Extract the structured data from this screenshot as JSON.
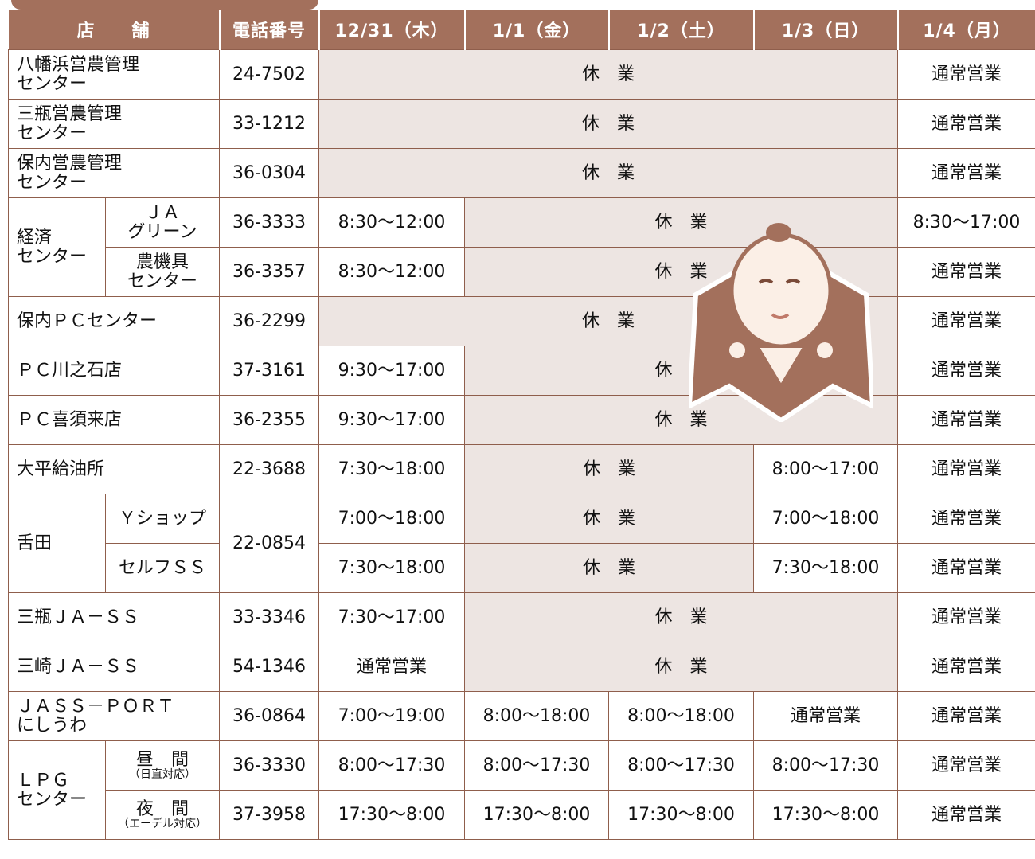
{
  "header": [
    "店　　舗",
    "電話番号",
    "12/31（木）",
    "1/1（金）",
    "1/2（土）",
    "1/3（日）",
    "1/4（月）"
  ],
  "rows": [
    {
      "store": [
        "八幡浜営農管理",
        "センター"
      ],
      "phone": "24-7502",
      "hours": [
        "休　業",
        "通常営業"
      ]
    },
    {
      "store": [
        "三瓶営農管理",
        "センター"
      ],
      "phone": "33-1212",
      "hours": [
        "休　業",
        "通常営業"
      ]
    },
    {
      "store": [
        "保内営農管理",
        "センター"
      ],
      "phone": "36-0304",
      "hours": [
        "休　業",
        "通常営業"
      ]
    },
    {
      "group": [
        "経済",
        "センター"
      ],
      "sub": [
        "ＪＡ",
        "グリーン"
      ],
      "phone": "36-3333",
      "hours": [
        "8:30～12:00",
        "休　業",
        "8:30～17:00"
      ]
    },
    {
      "sub": [
        "農機具",
        "センター"
      ],
      "phone": "36-3357",
      "hours": [
        "8:30～12:00",
        "休　業",
        "通常営業"
      ]
    },
    {
      "store": [
        "保内ＰＣセンター"
      ],
      "phone": "36-2299",
      "hours": [
        "休　業",
        "通常営業"
      ]
    },
    {
      "store": [
        "ＰＣ川之石店"
      ],
      "phone": "37-3161",
      "hours": [
        "9:30～17:00",
        "休　業",
        "通常営業"
      ]
    },
    {
      "store": [
        "ＰＣ喜須来店"
      ],
      "phone": "36-2355",
      "hours": [
        "9:30～17:00",
        "休　業",
        "通常営業"
      ]
    },
    {
      "store": [
        "大平給油所"
      ],
      "phone": "22-3688",
      "hours": [
        "7:30～18:00",
        "休　業",
        "8:00～17:00",
        "通常営業"
      ]
    },
    {
      "group": [
        "舌田"
      ],
      "sub": [
        "Ｙショップ"
      ],
      "phone": "22-0854",
      "hours": [
        "7:00～18:00",
        "休　業",
        "7:00～18:00",
        "通常営業"
      ]
    },
    {
      "sub": [
        "セルフＳＳ"
      ],
      "hours": [
        "7:30～18:00",
        "休　業",
        "7:30～18:00",
        "通常営業"
      ]
    },
    {
      "store": [
        "三瓶ＪＡ－ＳＳ"
      ],
      "phone": "33-3346",
      "hours": [
        "7:30～17:00",
        "休　業",
        "通常営業"
      ]
    },
    {
      "store": [
        "三崎ＪＡ－ＳＳ"
      ],
      "phone": "54-1346",
      "hours": [
        "通常営業",
        "休　業",
        "通常営業"
      ]
    },
    {
      "store": [
        "ＪＡＳＳ－ＰＯＲＴ",
        "にしうわ"
      ],
      "phone": "36-0864",
      "hours": [
        "7:00～19:00",
        "8:00～18:00",
        "8:00～18:00",
        "通常営業",
        "通常営業"
      ]
    },
    {
      "group": [
        "ＬＰＧ",
        "センター"
      ],
      "sub": [
        "昼　間",
        "（日直対応）"
      ],
      "phone": "36-3330",
      "hours": [
        "8:00～17:30",
        "8:00～17:30",
        "8:00～17:30",
        "8:00～17:30",
        "通常営業"
      ]
    },
    {
      "sub": [
        "夜　間",
        "（エーデル対応）"
      ],
      "phone": "37-3958",
      "hours": [
        "17:30～8:00",
        "17:30～8:00",
        "17:30～8:00",
        "17:30～8:00",
        "通常営業"
      ]
    }
  ]
}
